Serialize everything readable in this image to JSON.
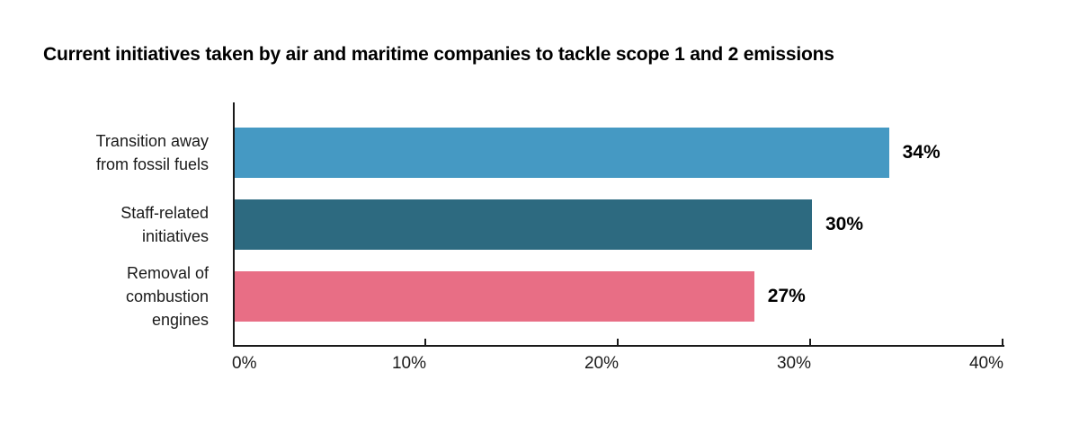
{
  "page": {
    "background": "#ffffff"
  },
  "chart_data": {
    "type": "bar",
    "orientation": "horizontal",
    "title": "Current initiatives taken by air and maritime companies to tackle scope 1 and 2 emissions",
    "categories": [
      "Transition away from fossil fuels",
      "Staff-related initiatives",
      "Removal of combustion engines"
    ],
    "category_lines": [
      [
        "Transition away",
        "from fossil fuels"
      ],
      [
        "Staff-related",
        "initiatives"
      ],
      [
        "Removal of",
        "combustion",
        "engines"
      ]
    ],
    "values": [
      34,
      30,
      27
    ],
    "value_labels": [
      "34%",
      "30%",
      "27%"
    ],
    "bar_colors": [
      "#4599c3",
      "#2d6a80",
      "#e86e85"
    ],
    "xlabel": "",
    "ylabel": "",
    "xlim": [
      0,
      40
    ],
    "x_ticks": [
      0,
      10,
      20,
      30,
      40
    ],
    "x_tick_labels": [
      "0%",
      "10%",
      "20%",
      "30%",
      "40%"
    ],
    "grid": false,
    "legend": false,
    "axis_color": "#1a1a1a",
    "text_color": "#1a1a1a",
    "title_color": "#000000"
  }
}
